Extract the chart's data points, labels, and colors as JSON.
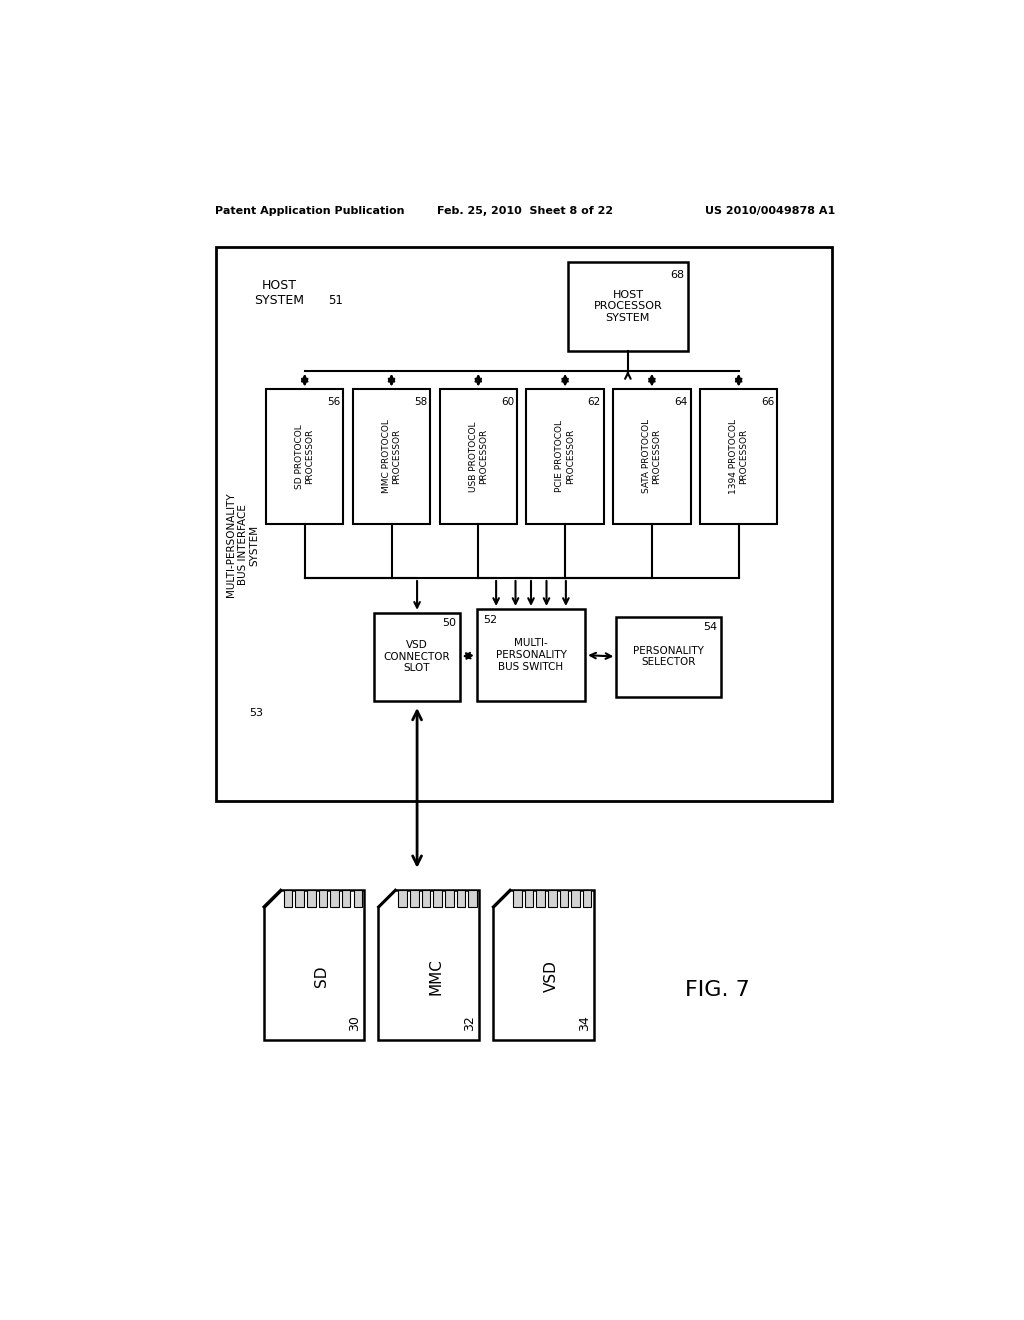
{
  "title_left": "Patent Application Publication",
  "title_mid": "Feb. 25, 2010  Sheet 8 of 22",
  "title_right": "US 2010/0049878 A1",
  "fig_label": "FIG. 7",
  "processors": [
    {
      "label": "SD PROTOCOL\nPROCESSOR",
      "num": "56"
    },
    {
      "label": "MMC PROTOCOL\nPROCESSOR",
      "num": "58"
    },
    {
      "label": "USB PROTOCOL\nPROCESSOR",
      "num": "60"
    },
    {
      "label": "PCIE PROTOCOL\nPROCESSOR",
      "num": "62"
    },
    {
      "label": "SATA PROTOCOL\nPROCESSOR",
      "num": "64"
    },
    {
      "label": "1394 PROTOCOL\nPROCESSOR",
      "num": "66"
    }
  ],
  "cards": [
    {
      "label": "SD",
      "num": "30"
    },
    {
      "label": "MMC",
      "num": "32"
    },
    {
      "label": "VSD",
      "num": "34"
    }
  ]
}
